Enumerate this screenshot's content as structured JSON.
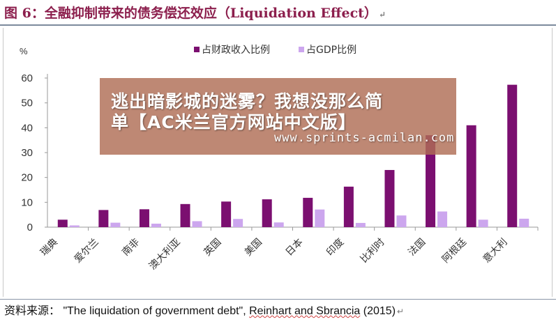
{
  "figure": {
    "title": "图 6：全融抑制带来的债务偿还效应（Liquidation Effect）",
    "return_mark": "↵"
  },
  "chart_data": {
    "type": "bar",
    "title": "",
    "xlabel": "",
    "ylabel": "%",
    "ylim": [
      0,
      60
    ],
    "yticks": [
      0,
      10,
      20,
      30,
      40,
      50,
      60
    ],
    "grid": false,
    "legend_position": "top",
    "categories": [
      "瑞典",
      "爱尔兰",
      "南非",
      "澳大利亚",
      "英国",
      "美国",
      "日本",
      "印度",
      "比利时",
      "法国",
      "阿根廷",
      "意大利"
    ],
    "series": [
      {
        "name": "占财政收入比例",
        "color": "#7b0f70",
        "values": [
          3.0,
          6.9,
          7.2,
          9.3,
          10.3,
          11.2,
          11.8,
          16.3,
          23.0,
          37.0,
          41.0,
          57.3
        ]
      },
      {
        "name": "占GDP比例",
        "color": "#cca6ee",
        "values": [
          0.7,
          1.8,
          1.4,
          2.4,
          3.3,
          1.9,
          7.1,
          1.7,
          4.7,
          6.3,
          3.0,
          3.4
        ]
      }
    ]
  },
  "watermark": {
    "line1": "逃出暗影城的迷雾？我想没那么简",
    "line2": "单【AC米兰官方网站中文版】",
    "url": "www.sprints-acmilan.com"
  },
  "source": {
    "label": "资料来源：",
    "citation": "\"The liquidation of government debt\", Reinhart and Sbrancia (2015)",
    "authors": "Reinhart and Sbrancia"
  }
}
